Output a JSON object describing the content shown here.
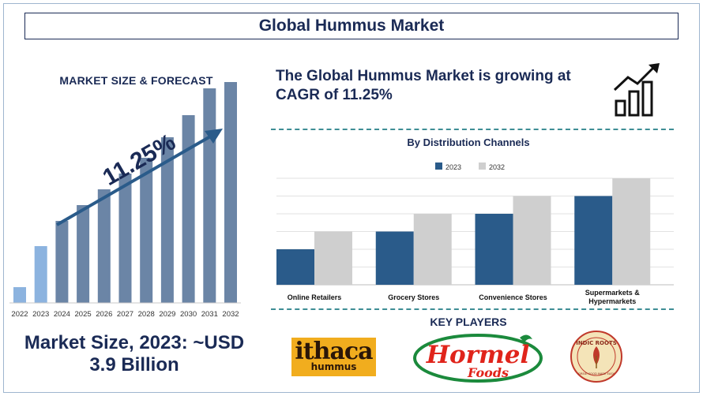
{
  "title": "Global Hummus Market",
  "left_panel": {
    "heading": "MARKET SIZE & FORECAST",
    "cagr_label": "11.25%",
    "market_size_line1": "Market Size, 2023: ~USD",
    "market_size_line2": "3.9 Billion"
  },
  "right_panel": {
    "cagr_text_line1": "The Global Hummus Market is growing at",
    "cagr_text_line2": "CAGR of 11.25%",
    "key_players_heading": "KEY PLAYERS",
    "key_players": [
      {
        "name": "ithaca hummus",
        "logo_line1": "ithaca",
        "logo_line2": "hummus"
      },
      {
        "name": "Hormel Foods",
        "logo_line1": "Hormel",
        "logo_line2": "Foods"
      },
      {
        "name": "Indic Roots",
        "logo_line1": "INDIC ROOTS",
        "logo_line2": "GREAT FOOD MADE EASY"
      }
    ]
  },
  "icons": [
    "growth-chart-icon",
    "trend-arrow-icon"
  ],
  "colors": {
    "navy": "#1a2a55",
    "bar_2023": "#2a5b8a",
    "bar_2032": "#cfcfcf",
    "forecast_bar": "#6b85a6",
    "forecast_bar_light": "#8cb3df",
    "divider": "#3e8e95"
  },
  "chart_data": [
    {
      "type": "bar",
      "title": "MARKET SIZE & FORECAST",
      "categories": [
        "2022",
        "2023",
        "2024",
        "2025",
        "2026",
        "2027",
        "2028",
        "2029",
        "2030",
        "2031",
        "2032"
      ],
      "values": [
        1.0,
        3.6,
        5.2,
        6.2,
        7.2,
        8.2,
        9.2,
        10.5,
        11.9,
        13.6,
        14.0
      ],
      "ylim": [
        0,
        15
      ],
      "annotation": "11.25%",
      "grid": false,
      "xlabel": "",
      "ylabel": ""
    },
    {
      "type": "bar",
      "title": "By Distribution Channels",
      "categories": [
        "Online Retailers",
        "Grocery Stores",
        "Convenience Stores",
        "Supermarkets & Hypermarkets"
      ],
      "series": [
        {
          "name": "2023",
          "values": [
            2.0,
            3.0,
            4.0,
            5.0
          ]
        },
        {
          "name": "2032",
          "values": [
            3.0,
            4.0,
            5.0,
            6.0
          ]
        }
      ],
      "ylim": [
        0,
        6
      ],
      "grid": true,
      "legend": "top-center",
      "xlabel": "",
      "ylabel": ""
    }
  ]
}
